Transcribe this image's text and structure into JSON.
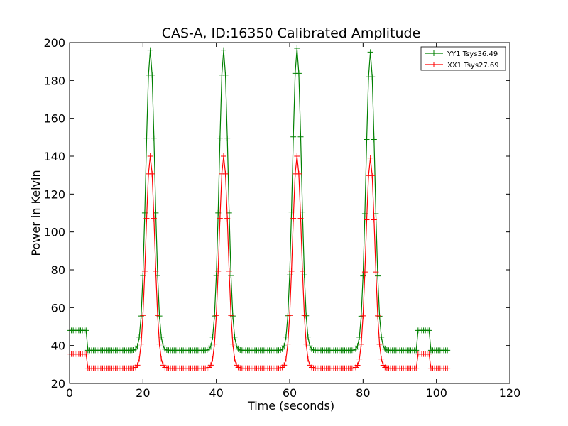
{
  "chart_data": {
    "type": "line",
    "title": "CAS-A, ID:16350 Calibrated Amplitude",
    "xlabel": "Time (seconds)",
    "ylabel": "Power in Kelvin",
    "xlim": [
      0,
      120
    ],
    "ylim": [
      20,
      200
    ],
    "xticks": [
      0,
      20,
      40,
      60,
      80,
      100,
      120
    ],
    "yticks": [
      20,
      40,
      60,
      80,
      100,
      120,
      140,
      160,
      180,
      200
    ],
    "xtick_labels": [
      "0",
      "20",
      "40",
      "60",
      "80",
      "100",
      "120"
    ],
    "ytick_labels": [
      "20",
      "40",
      "60",
      "80",
      "100",
      "120",
      "140",
      "160",
      "180",
      "200"
    ],
    "grid": false,
    "legend_position": "top-right",
    "marker": "+",
    "series": [
      {
        "name": "YY1 Tsys36.49",
        "color": "#008000",
        "base_high": 48,
        "base_low": 37.5,
        "peaks": [
          {
            "center": 22,
            "height": 196
          },
          {
            "center": 42,
            "height": 196
          },
          {
            "center": 62,
            "height": 197
          },
          {
            "center": 82,
            "height": 195
          }
        ]
      },
      {
        "name": "XX1 Tsys27.69",
        "color": "#ff0000",
        "base_high": 35.5,
        "base_low": 28,
        "peaks": [
          {
            "center": 22,
            "height": 140
          },
          {
            "center": 42,
            "height": 140
          },
          {
            "center": 62,
            "height": 140
          },
          {
            "center": 82,
            "height": 139
          }
        ]
      }
    ]
  }
}
